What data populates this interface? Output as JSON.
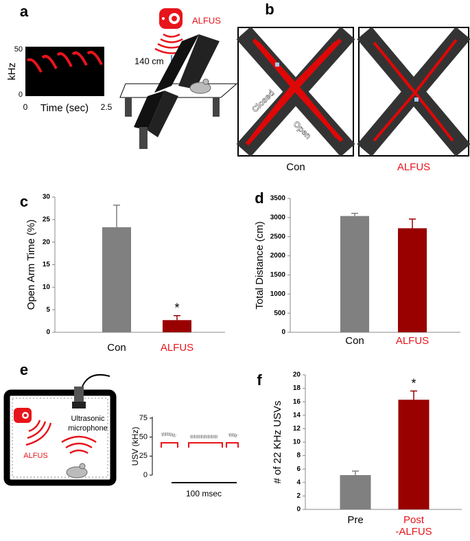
{
  "panel_labels": [
    "a",
    "b",
    "c",
    "d",
    "e",
    "f"
  ],
  "panel_a": {
    "spectrogram": {
      "y_label": "kHz",
      "y_ticks": [
        0,
        50
      ],
      "x_ticks": [
        0,
        2.5
      ],
      "x_label": "Time (sec)"
    },
    "distance": "140 cm",
    "device": "ALFUS"
  },
  "panel_b": {
    "arm_closed": "Closed",
    "arm_open": "Open",
    "groups": [
      "Con",
      "ALFUS"
    ]
  },
  "panel_e": {
    "device": "ALFUS",
    "microphone": [
      "Ultrasonic",
      "microphone"
    ],
    "usv": {
      "y_label": "USV (kHz)",
      "y_ticks": [
        0,
        25,
        50,
        75
      ],
      "scale": "100 msec"
    }
  },
  "chart_data": [
    {
      "type": "bar",
      "y_label": "Open Arm Time (%)",
      "categories": [
        "Con",
        "ALFUS"
      ],
      "values": [
        23.3,
        2.7
      ],
      "errors": [
        4.9,
        1.0
      ],
      "colors": [
        "#808080",
        "#990000"
      ],
      "label_colors": [
        "#000000",
        "#e8141b"
      ],
      "ylim": [
        0,
        30
      ],
      "yticks": [
        0,
        5,
        10,
        15,
        20,
        25,
        30
      ],
      "annotation": {
        "text": "*",
        "category": 1
      }
    },
    {
      "type": "bar",
      "y_label": "Total Distance (cm)",
      "categories": [
        "Con",
        "ALFUS"
      ],
      "values": [
        3040,
        2720
      ],
      "errors": [
        70,
        240
      ],
      "colors": [
        "#808080",
        "#990000"
      ],
      "label_colors": [
        "#000000",
        "#e8141b"
      ],
      "ylim": [
        0,
        3500
      ],
      "yticks": [
        0,
        500,
        1000,
        1500,
        2000,
        2500,
        3000,
        3500
      ]
    },
    {
      "type": "bar",
      "y_label": "# of 22 KHz USVs",
      "categories": [
        "Pre",
        "Post\n-ALFUS"
      ],
      "values": [
        5.1,
        16.3
      ],
      "errors": [
        0.6,
        1.3
      ],
      "colors": [
        "#808080",
        "#990000"
      ],
      "label_colors": [
        "#000000",
        "#e8141b"
      ],
      "ylim": [
        0,
        20
      ],
      "yticks": [
        0,
        2,
        4,
        6,
        8,
        10,
        12,
        14,
        16,
        18,
        20
      ],
      "annotation": {
        "text": "*",
        "category": 1
      }
    }
  ]
}
